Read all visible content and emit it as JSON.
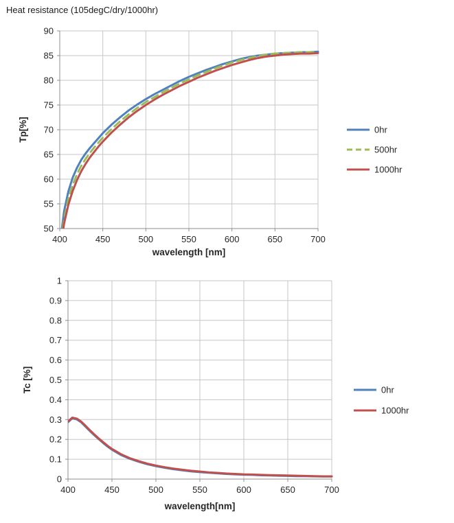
{
  "title": "Heat resistance (105degC/dry/1000hr)",
  "colors": {
    "blue": "#4F81BD",
    "green": "#9BBB59",
    "red": "#C0504D",
    "grid": "#C6C6C6",
    "axis": "#8C8C8C",
    "text": "#262626"
  },
  "chart_data": [
    {
      "type": "line",
      "title": "Heat resistance (105degC/dry/1000hr)",
      "xlabel": "wavelength [nm]",
      "ylabel": "Tp[%]",
      "xlim": [
        400,
        700
      ],
      "ylim": [
        50,
        90
      ],
      "xticks": [
        400,
        450,
        500,
        550,
        600,
        650,
        700
      ],
      "yticks": [
        50,
        55,
        60,
        65,
        70,
        75,
        80,
        85,
        90
      ],
      "grid": true,
      "legend_position": "right",
      "x": [
        400,
        405,
        410,
        415,
        420,
        425,
        430,
        435,
        440,
        445,
        450,
        460,
        470,
        480,
        490,
        500,
        510,
        520,
        530,
        540,
        550,
        560,
        570,
        580,
        590,
        600,
        610,
        620,
        630,
        640,
        650,
        660,
        670,
        680,
        690,
        700
      ],
      "series": [
        {
          "name": "0hr",
          "color": "blue",
          "dash": "solid",
          "values": [
            46.5,
            53.5,
            57.5,
            60.3,
            62.3,
            63.9,
            65.2,
            66.3,
            67.3,
            68.3,
            69.3,
            71.0,
            72.5,
            73.9,
            75.1,
            76.2,
            77.2,
            78.1,
            79.0,
            79.9,
            80.7,
            81.4,
            82.1,
            82.7,
            83.3,
            83.8,
            84.3,
            84.7,
            85.0,
            85.2,
            85.4,
            85.5,
            85.6,
            85.7,
            85.7,
            85.8
          ]
        },
        {
          "name": "500hr",
          "color": "green",
          "dash": "dashed",
          "values": [
            45.5,
            52.0,
            56.0,
            58.8,
            61.0,
            62.7,
            64.1,
            65.3,
            66.4,
            67.4,
            68.4,
            70.1,
            71.7,
            73.1,
            74.4,
            75.6,
            76.6,
            77.6,
            78.5,
            79.4,
            80.2,
            81.0,
            81.7,
            82.4,
            83.0,
            83.6,
            84.1,
            84.5,
            84.9,
            85.2,
            85.4,
            85.5,
            85.6,
            85.7,
            85.7,
            85.8
          ]
        },
        {
          "name": "1000hr",
          "color": "red",
          "dash": "solid",
          "values": [
            45.0,
            51.0,
            54.8,
            57.6,
            59.8,
            61.6,
            63.1,
            64.4,
            65.5,
            66.6,
            67.6,
            69.4,
            71.0,
            72.5,
            73.8,
            75.0,
            76.1,
            77.1,
            78.0,
            78.9,
            79.7,
            80.5,
            81.2,
            81.9,
            82.5,
            83.1,
            83.6,
            84.1,
            84.5,
            84.8,
            85.0,
            85.2,
            85.3,
            85.4,
            85.4,
            85.5
          ]
        }
      ]
    },
    {
      "type": "line",
      "title": "",
      "xlabel": "wavelength[nm]",
      "ylabel": "Tc [%]",
      "xlim": [
        400,
        700
      ],
      "ylim": [
        0,
        1
      ],
      "xticks": [
        400,
        450,
        500,
        550,
        600,
        650,
        700
      ],
      "yticks": [
        0,
        0.1,
        0.2,
        0.3,
        0.4,
        0.5,
        0.6,
        0.7,
        0.8,
        0.9,
        1
      ],
      "grid": true,
      "legend_position": "right",
      "x": [
        400,
        405,
        410,
        415,
        420,
        425,
        430,
        435,
        440,
        445,
        450,
        460,
        470,
        480,
        490,
        500,
        510,
        520,
        530,
        540,
        550,
        560,
        570,
        580,
        590,
        600,
        610,
        620,
        630,
        640,
        650,
        660,
        670,
        680,
        690,
        700
      ],
      "series": [
        {
          "name": "0hr",
          "color": "blue",
          "dash": "solid",
          "values": [
            0.287,
            0.307,
            0.301,
            0.286,
            0.264,
            0.242,
            0.221,
            0.201,
            0.182,
            0.164,
            0.148,
            0.122,
            0.103,
            0.088,
            0.075,
            0.065,
            0.057,
            0.05,
            0.044,
            0.039,
            0.035,
            0.032,
            0.029,
            0.026,
            0.024,
            0.022,
            0.021,
            0.019,
            0.018,
            0.017,
            0.016,
            0.015,
            0.015,
            0.014,
            0.013,
            0.013
          ]
        },
        {
          "name": "1000hr",
          "color": "red",
          "dash": "solid",
          "values": [
            0.29,
            0.31,
            0.305,
            0.29,
            0.268,
            0.246,
            0.225,
            0.205,
            0.186,
            0.168,
            0.152,
            0.126,
            0.106,
            0.091,
            0.078,
            0.068,
            0.06,
            0.053,
            0.047,
            0.042,
            0.038,
            0.034,
            0.031,
            0.028,
            0.026,
            0.024,
            0.023,
            0.021,
            0.02,
            0.019,
            0.018,
            0.017,
            0.016,
            0.015,
            0.014,
            0.014
          ]
        }
      ]
    }
  ]
}
